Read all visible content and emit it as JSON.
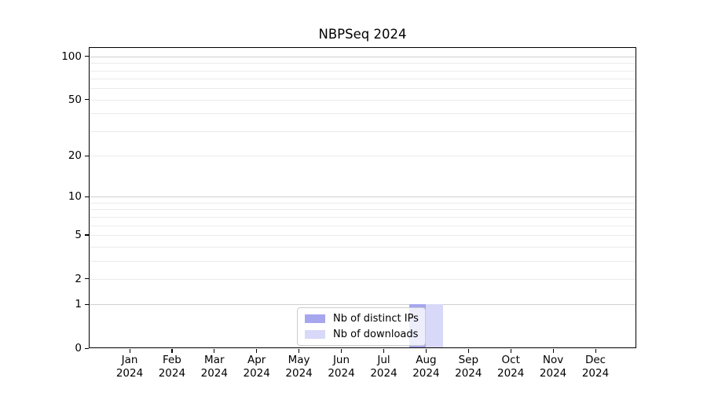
{
  "figure": {
    "title": "NBPSeq 2024"
  },
  "chart_data": {
    "type": "bar",
    "title": "NBPSeq 2024",
    "categories": [
      {
        "month": "Jan",
        "year": "2024"
      },
      {
        "month": "Feb",
        "year": "2024"
      },
      {
        "month": "Mar",
        "year": "2024"
      },
      {
        "month": "Apr",
        "year": "2024"
      },
      {
        "month": "May",
        "year": "2024"
      },
      {
        "month": "Jun",
        "year": "2024"
      },
      {
        "month": "Jul",
        "year": "2024"
      },
      {
        "month": "Aug",
        "year": "2024"
      },
      {
        "month": "Sep",
        "year": "2024"
      },
      {
        "month": "Oct",
        "year": "2024"
      },
      {
        "month": "Nov",
        "year": "2024"
      },
      {
        "month": "Dec",
        "year": "2024"
      }
    ],
    "series": [
      {
        "name": "Nb of distinct IPs",
        "color": "#a6a6ee",
        "values": [
          0,
          0,
          0,
          0,
          0,
          0,
          0,
          1,
          0,
          0,
          0,
          0
        ]
      },
      {
        "name": "Nb of downloads",
        "color": "#d8d8f8",
        "values": [
          0,
          0,
          0,
          0,
          0,
          0,
          0,
          1,
          0,
          0,
          0,
          0
        ]
      }
    ],
    "yscale": "log1p",
    "ylim": [
      0,
      116
    ],
    "ytick_values": [
      0,
      1,
      2,
      5,
      10,
      20,
      50,
      100
    ],
    "grid_major_values": [
      1,
      10,
      100
    ],
    "grid_minor_values": [
      2,
      3,
      4,
      5,
      6,
      7,
      8,
      9,
      20,
      30,
      40,
      50,
      60,
      70,
      80,
      90
    ],
    "legend": {
      "position": "lower center",
      "items": [
        {
          "label": "Nb of distinct IPs"
        },
        {
          "label": "Nb of downloads"
        }
      ]
    },
    "colors": {
      "axis": "#000000",
      "grid_major": "#cfcfcf",
      "grid_minor": "#ebebeb",
      "legend_border": "#cccccc"
    }
  }
}
